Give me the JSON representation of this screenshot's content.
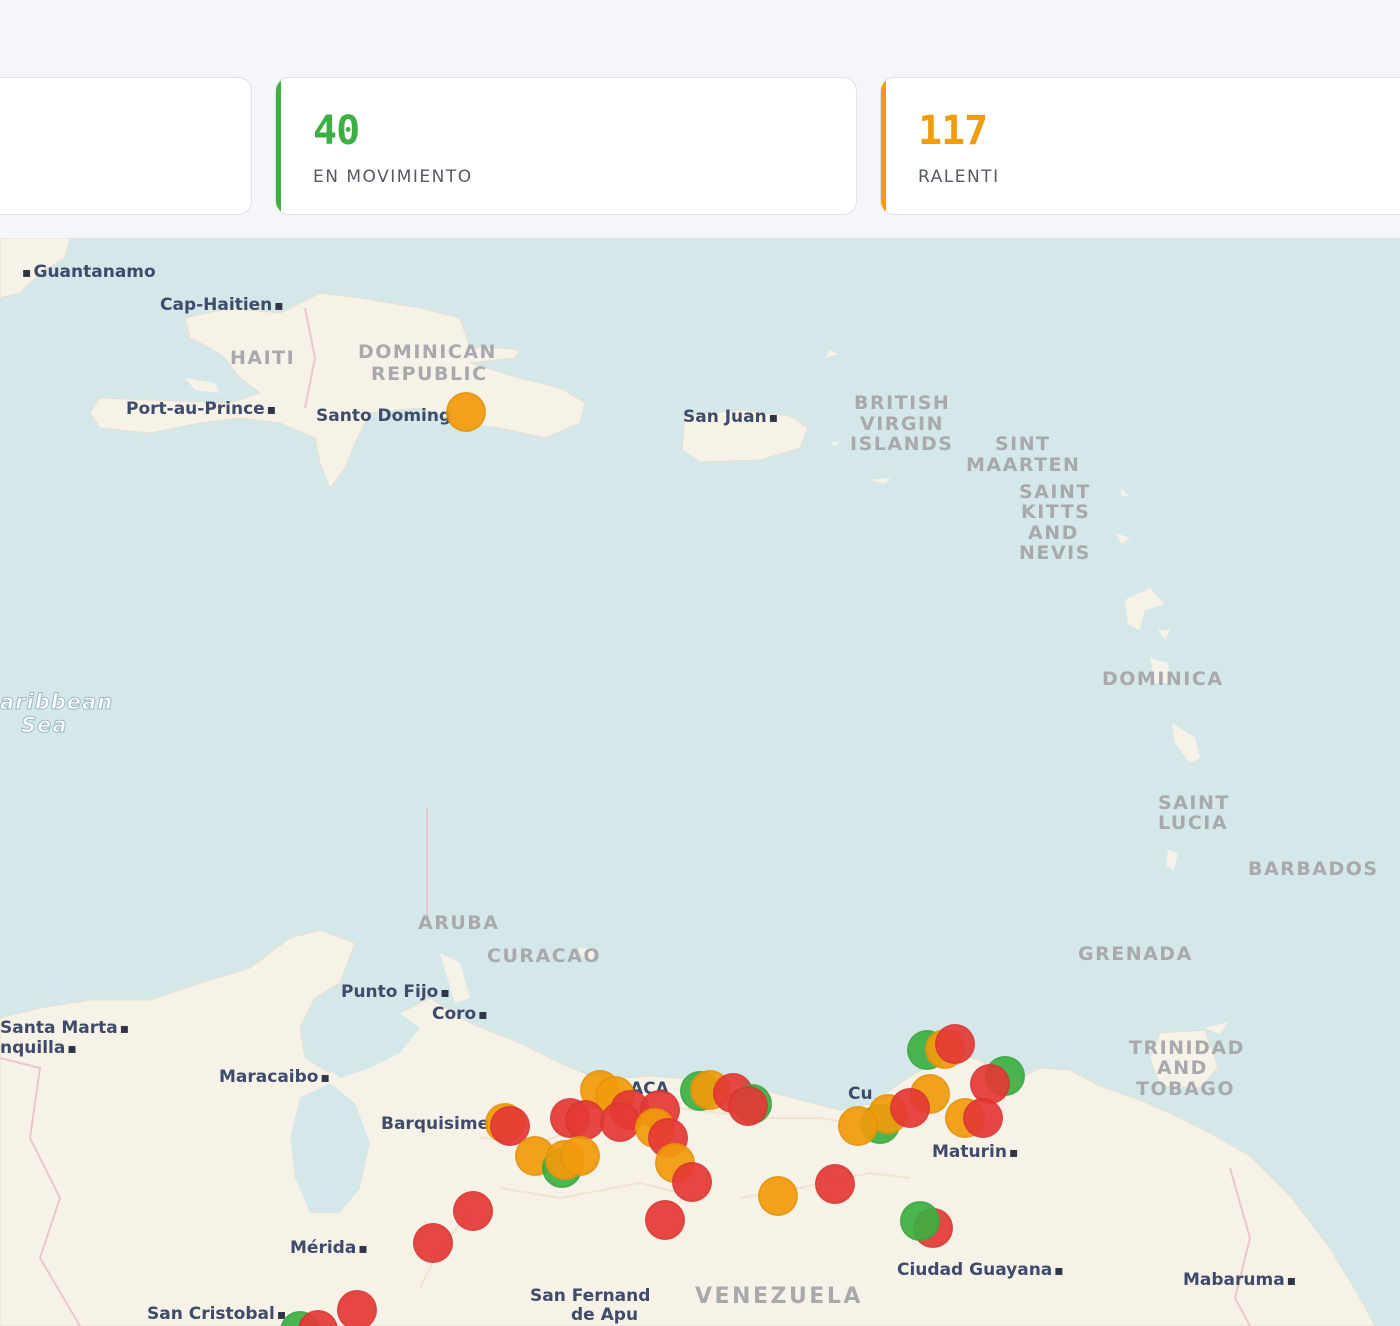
{
  "stats": {
    "moving": {
      "value": "40",
      "label": "EN MOVIMIENTO",
      "color": "#3db043"
    },
    "idle": {
      "value": "117",
      "label": "RALENTI",
      "color": "#f29b0b"
    }
  },
  "map": {
    "cities": {
      "guantanamo": "Guantanamo",
      "cap_haitien": "Cap-Haitien",
      "port_au_prince": "Port-au-Prince",
      "santo_domingo": "Santo Doming",
      "san_juan": "San Juan",
      "punto_fijo": "Punto Fijo",
      "coro": "Coro",
      "santa_marta": "Santa Marta",
      "barranquilla": "nquilla",
      "maracaibo": "Maracaibo",
      "barquisimeto": "Barquisime",
      "caracas": "ACA",
      "cumana": "Cu",
      "maturin": "Maturin",
      "merida": "Mérida",
      "san_cristobal": "San Cristobal",
      "san_fernando_1": "San Fernand",
      "san_fernando_2": "de Apu",
      "ciudad_guayana": "Ciudad Guayana",
      "mabaruma": "Mabaruma"
    },
    "countries": {
      "haiti": "HAITI",
      "dominican_republic_1": "DOMINICAN",
      "dominican_republic_2": "REPUBLIC",
      "bvi_1": "BRITISH",
      "bvi_2": "VIRGIN",
      "bvi_3": "ISLANDS",
      "sint_maarten_1": "SINT",
      "sint_maarten_2": "MAARTEN",
      "skn_1": "SAINT",
      "skn_2": "KITTS",
      "skn_3": "AND",
      "skn_4": "NEVIS",
      "dominica": "DOMINICA",
      "saint_lucia_1": "SAINT",
      "saint_lucia_2": "LUCIA",
      "barbados": "BARBADOS",
      "grenada": "GRENADA",
      "aruba": "ARUBA",
      "curacao": "CURACAO",
      "tt_1": "TRINIDAD",
      "tt_2": "AND",
      "tt_3": "TOBAGO",
      "venezuela": "VENEZUELA"
    },
    "seas": {
      "caribbean_1": "aribbean",
      "caribbean_2": "Sea"
    },
    "status_colors": {
      "moving": "#3db043",
      "idle": "#f29b0b",
      "stopped": "#e53935"
    },
    "markers": [
      {
        "status": "idle"
      },
      {
        "status": "stopped"
      },
      {
        "status": "moving"
      },
      {
        "status": "idle"
      }
    ]
  }
}
